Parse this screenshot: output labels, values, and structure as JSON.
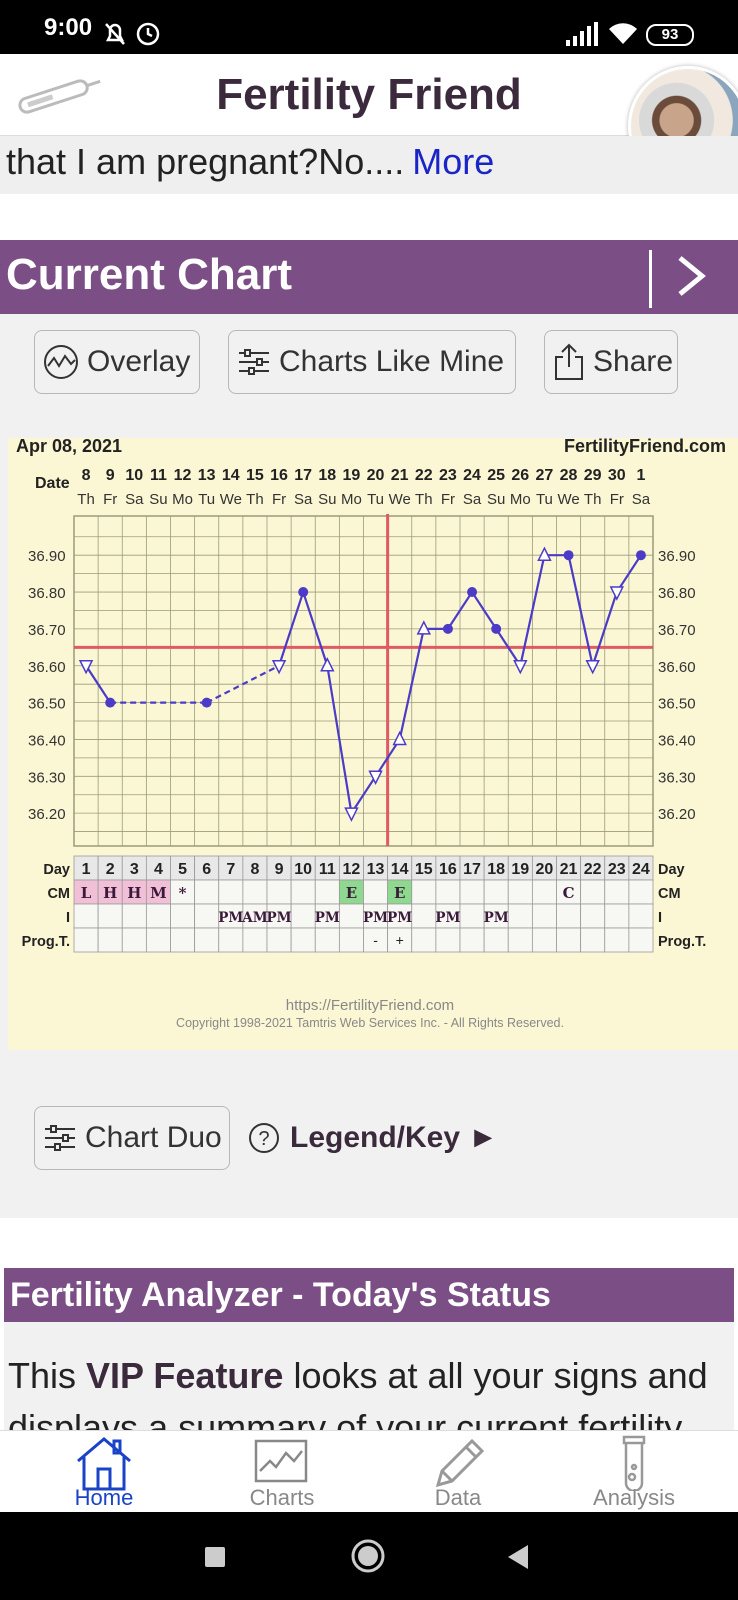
{
  "status_bar": {
    "time": "9:00",
    "battery": "93"
  },
  "header": {
    "title": "Fertility Friend"
  },
  "ticker": {
    "text": "that I am pregnant?No....",
    "more": "More"
  },
  "current_chart": {
    "title": "Current Chart"
  },
  "buttons": {
    "overlay": "Overlay",
    "charts_like_mine": "Charts Like Mine",
    "share": "Share",
    "chart_duo": "Chart Duo",
    "legend": "Legend/Key ►"
  },
  "chart_header": {
    "date": "Apr 08, 2021",
    "site": "FertilityFriend.com"
  },
  "chart_footer": {
    "url": "https://FertilityFriend.com",
    "copyright": "Copyright 1998-2021 Tamtris Web Services Inc. - All Rights Reserved."
  },
  "row_labels": {
    "date": "Date",
    "day": "Day",
    "cm": "CM",
    "i": "I",
    "prog": "Prog.T."
  },
  "chart_data": {
    "type": "line",
    "ylabel": "",
    "ylim": [
      36.1,
      36.99
    ],
    "y_ticks": [
      "36.90",
      "36.80",
      "36.70",
      "36.60",
      "36.50",
      "36.40",
      "36.30",
      "36.20"
    ],
    "dates": [
      "8",
      "9",
      "10",
      "11",
      "12",
      "13",
      "14",
      "15",
      "16",
      "17",
      "18",
      "19",
      "20",
      "21",
      "22",
      "23",
      "24",
      "25",
      "26",
      "27",
      "28",
      "29",
      "30",
      "1"
    ],
    "weekdays": [
      "Th",
      "Fr",
      "Sa",
      "Su",
      "Mo",
      "Tu",
      "We",
      "Th",
      "Fr",
      "Sa",
      "Su",
      "Mo",
      "Tu",
      "We",
      "Th",
      "Fr",
      "Sa",
      "Su",
      "Mo",
      "Tu",
      "We",
      "Th",
      "Fr",
      "Sa"
    ],
    "days": [
      "1",
      "2",
      "3",
      "4",
      "5",
      "6",
      "7",
      "8",
      "9",
      "10",
      "11",
      "12",
      "13",
      "14",
      "15",
      "16",
      "17",
      "18",
      "19",
      "20",
      "21",
      "22",
      "23",
      "24"
    ],
    "temps": [
      36.6,
      36.5,
      null,
      null,
      null,
      36.5,
      null,
      null,
      36.6,
      36.8,
      36.6,
      36.2,
      36.3,
      36.4,
      36.7,
      36.7,
      36.8,
      36.7,
      36.6,
      36.9,
      36.9,
      36.6,
      36.8,
      36.9
    ],
    "markers": [
      "tri",
      "dot",
      "",
      "",
      "",
      "dot",
      "",
      "",
      "tri",
      "dot",
      "tri",
      "tri",
      "tri",
      "tri",
      "tri",
      "dot",
      "dot",
      "dot",
      "tri",
      "tri",
      "dot",
      "tri",
      "tri",
      "dot"
    ],
    "coverline": 36.65,
    "ovulation_day": 14,
    "cm": [
      "L",
      "H",
      "H",
      "M",
      "*",
      "",
      "",
      "",
      "",
      "",
      "",
      "E",
      "",
      "E",
      "",
      "",
      "",
      "",
      "",
      "",
      "C",
      "",
      "",
      ""
    ],
    "cm_colors": [
      "#f2c0d6",
      "#f2c0d6",
      "#f2c0d6",
      "#f2c0d6",
      "",
      "",
      "",
      "",
      "",
      "",
      "",
      "#8fd88f",
      "",
      "#8fd88f",
      "",
      "",
      "",
      "",
      "",
      "",
      "",
      "",
      "",
      ""
    ],
    "intercourse": [
      "",
      "",
      "",
      "",
      "",
      "",
      "PM",
      "AM",
      "PM",
      "",
      "PM",
      "",
      "PM",
      "PM",
      "",
      "PM",
      "",
      "PM",
      "",
      "",
      "",
      "",
      "",
      ""
    ],
    "prog_test": [
      "",
      "",
      "",
      "",
      "",
      "",
      "",
      "",
      "",
      "",
      "",
      "",
      "-",
      "+",
      "",
      "",
      "",
      "",
      "",
      "",
      "",
      "",
      "",
      ""
    ],
    "colors": {
      "line": "#4b3bc7",
      "coverline": "#e05a63",
      "grid": "#9b9b7a",
      "bg": "#fbf7d4"
    }
  },
  "fertility_analyzer": {
    "title": "Fertility Analyzer - Today's Status",
    "text_pre": "This",
    "text_bold": "VIP Feature",
    "text_post": "looks at all your signs and displays a summary of your current fertility"
  },
  "nav": {
    "home": "Home",
    "charts": "Charts",
    "data": "Data",
    "analysis": "Analysis"
  }
}
